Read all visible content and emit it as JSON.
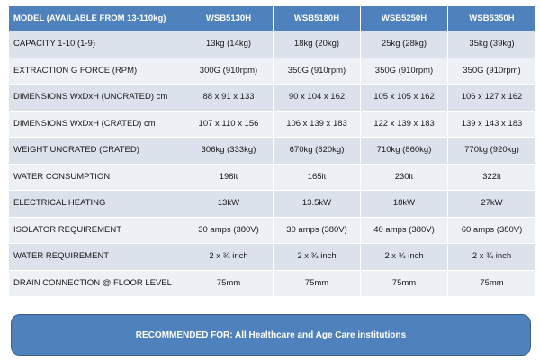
{
  "table": {
    "header": [
      "MODEL (AVAILABLE FROM 13-110kg)",
      "WSB5130H",
      "WSB5180H",
      "WSB5250H",
      "WSB5350H"
    ],
    "rows": [
      [
        "CAPACITY 1-10 (1-9)",
        "13kg (14kg)",
        "18kg (20kg)",
        "25kg (28kg)",
        "35kg (39kg)"
      ],
      [
        "EXTRACTION G FORCE (RPM)",
        "300G (910rpm)",
        "350G (910rpm)",
        "350G (910rpm)",
        "350G (910rpm)"
      ],
      [
        "DIMENSIONS WxDxH (UNCRATED) cm",
        "88 x 91 x 133",
        "90 x 104 x 162",
        "105 x 105 x 162",
        "106 x 127 x 162"
      ],
      [
        "DIMENSIONS WxDxH (CRATED) cm",
        "107 x 110 x 156",
        "106 x 139 x 183",
        "122 x 139 x 183",
        "139 x 143 x 183"
      ],
      [
        "WEIGHT UNCRATED (CRATED)",
        "306kg (333kg)",
        "670kg (820kg)",
        "710kg (860kg)",
        "770kg (920kg)"
      ],
      [
        "WATER CONSUMPTION",
        "198lt",
        "165lt",
        "230lt",
        "322lt"
      ],
      [
        "ELECTRICAL HEATING",
        "13kW",
        "13.5kW",
        "18kW",
        "27kW"
      ],
      [
        "ISOLATOR REQUIREMENT",
        "30 amps (380V)",
        "30 amps (380V)",
        "40 amps (380V)",
        "60 amps (380V)"
      ],
      [
        "WATER REQUIREMENT",
        "2 x ¾ inch",
        "2 x ¾ inch",
        "2 x ¾ inch",
        "2 x ¾ inch"
      ],
      [
        "DRAIN CONNECTION @ FLOOR LEVEL",
        "75mm",
        "75mm",
        "75mm",
        "75mm"
      ]
    ]
  },
  "recommended": "RECOMMENDED FOR: All Healthcare and Age Care institutions",
  "colors": {
    "header_bg": "#4f81bd",
    "row_dark": "#dbe2ec",
    "row_light": "#edf1f6"
  }
}
